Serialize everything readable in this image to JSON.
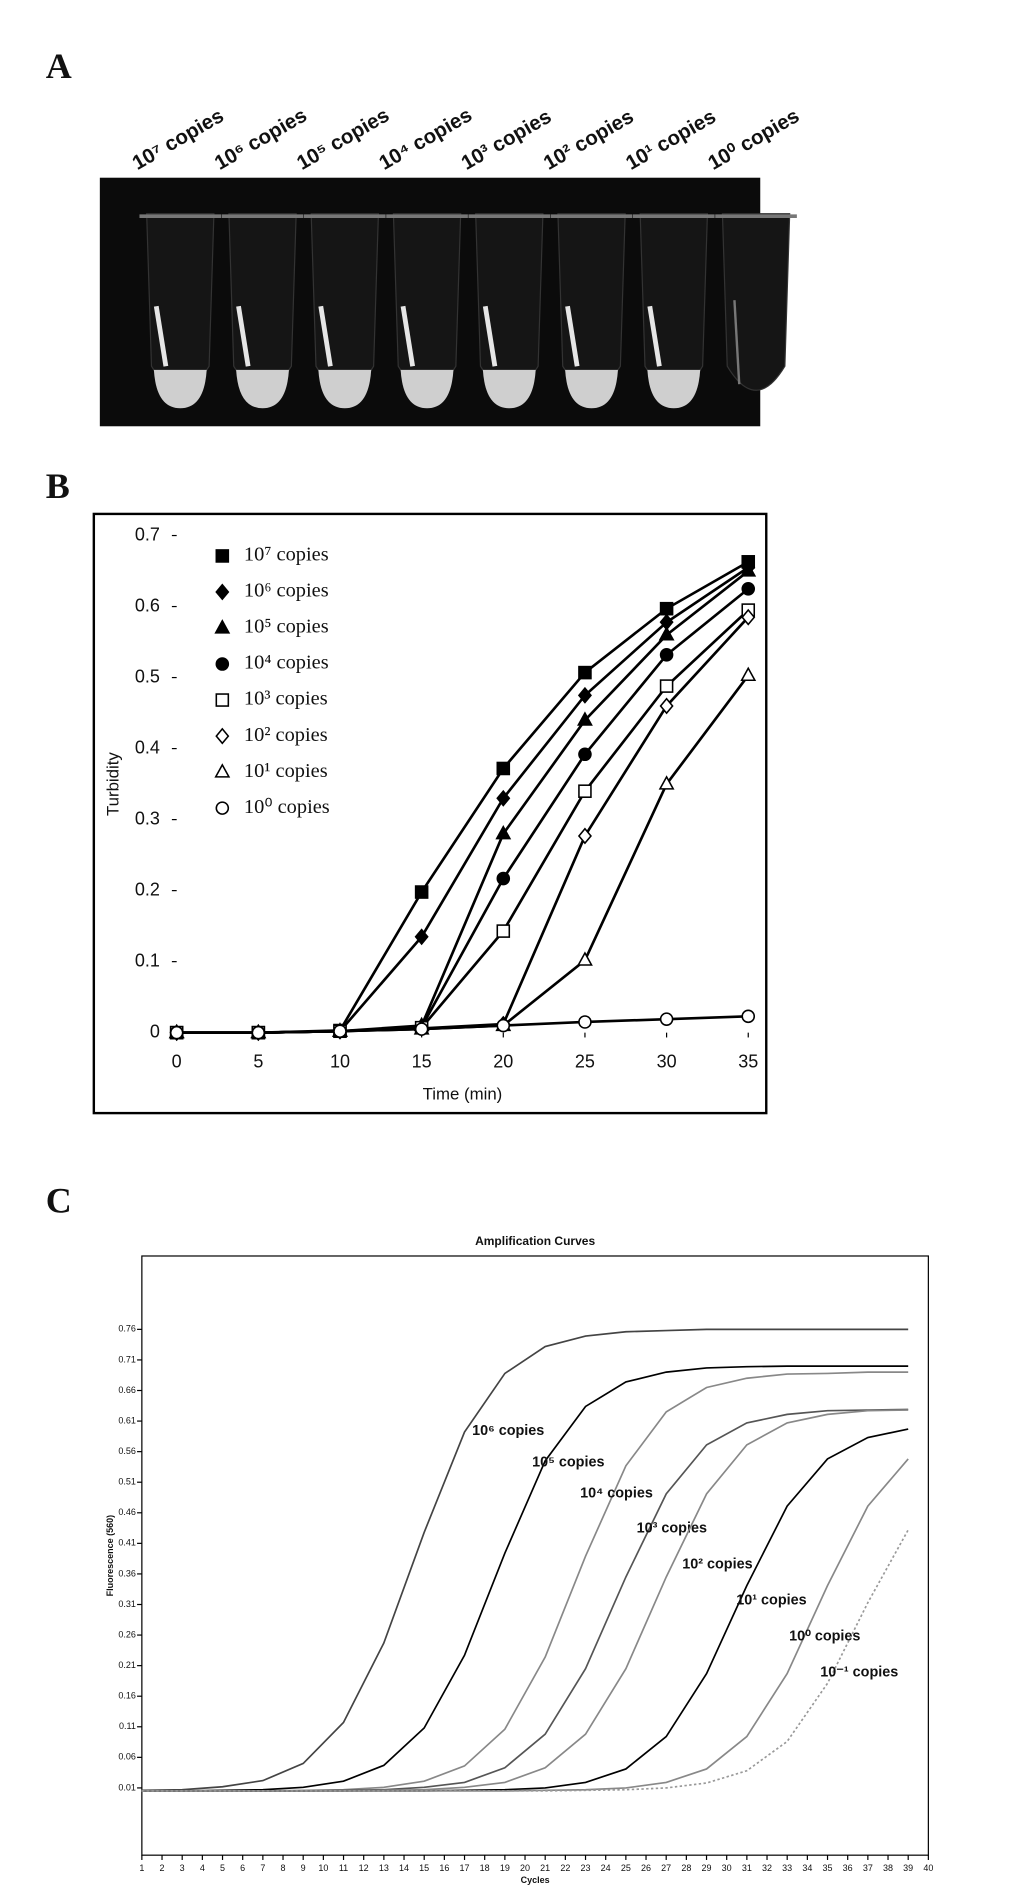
{
  "panel_labels": [
    "A",
    "B",
    "C"
  ],
  "gel": {
    "labels": [
      "10⁷ copies",
      "10⁶ copies",
      "10⁵ copies",
      "10⁴ copies",
      "10³ copies",
      "10² copies",
      "10¹ copies",
      "10⁰ copies"
    ]
  },
  "chart_data": [
    {
      "type": "line",
      "y_label": "Turbidity",
      "x_label": "Time (min)",
      "x": [
        0,
        5,
        10,
        15,
        20,
        25,
        30,
        35
      ],
      "xlim": [
        0,
        35
      ],
      "xticks": [
        0,
        5,
        10,
        15,
        20,
        25,
        30,
        35
      ],
      "ylim": [
        0,
        0.7
      ],
      "yticks": [
        0,
        0.1,
        0.2,
        0.3,
        0.4,
        0.5,
        0.6,
        0.7
      ],
      "legend": "upper left",
      "series": [
        {
          "name": "10⁷ copies",
          "color": "#000000",
          "marker": "square",
          "filled": true,
          "values": [
            0,
            0,
            0.003,
            0.198,
            0.372,
            0.507,
            0.597,
            0.663
          ]
        },
        {
          "name": "10⁶ copies",
          "color": "#000000",
          "marker": "diamond",
          "filled": true,
          "values": [
            0,
            0,
            0.002,
            0.135,
            0.33,
            0.475,
            0.578,
            0.655
          ]
        },
        {
          "name": "10⁵ copies",
          "color": "#000000",
          "marker": "triangle",
          "filled": true,
          "values": [
            0,
            0,
            0.002,
            0.01,
            0.28,
            0.44,
            0.56,
            0.65
          ]
        },
        {
          "name": "10⁴ copies",
          "color": "#000000",
          "marker": "circle",
          "filled": true,
          "values": [
            0,
            0,
            0.002,
            0.008,
            0.217,
            0.392,
            0.532,
            0.625
          ]
        },
        {
          "name": "10³ copies",
          "color": "#000000",
          "marker": "square",
          "filled": false,
          "values": [
            0,
            0,
            0.002,
            0.007,
            0.143,
            0.34,
            0.488,
            0.595
          ]
        },
        {
          "name": "10² copies",
          "color": "#000000",
          "marker": "diamond",
          "filled": false,
          "values": [
            0,
            0,
            0.002,
            0.006,
            0.012,
            0.277,
            0.46,
            0.585
          ]
        },
        {
          "name": "10¹ copies",
          "color": "#000000",
          "marker": "triangle",
          "filled": false,
          "values": [
            0,
            0,
            0.002,
            0.005,
            0.01,
            0.102,
            0.35,
            0.503
          ]
        },
        {
          "name": "10⁰ copies",
          "color": "#000000",
          "marker": "circle",
          "filled": false,
          "values": [
            0,
            0,
            0.002,
            0.005,
            0.01,
            0.015,
            0.019,
            0.023
          ]
        }
      ]
    },
    {
      "type": "line",
      "title": "Amplification Curves",
      "y_label": "Fluorescence (560)",
      "x_label": "Cycles",
      "x": [
        1,
        3,
        5,
        7,
        9,
        11,
        13,
        15,
        17,
        19,
        21,
        23,
        25,
        27,
        29,
        31,
        33,
        35,
        37,
        39
      ],
      "xlim": [
        1,
        40
      ],
      "xticks": [
        1,
        2,
        3,
        4,
        5,
        6,
        7,
        8,
        9,
        10,
        11,
        12,
        13,
        14,
        15,
        16,
        17,
        18,
        19,
        20,
        21,
        22,
        23,
        24,
        25,
        26,
        27,
        28,
        29,
        30,
        31,
        32,
        33,
        34,
        35,
        36,
        37,
        38,
        39,
        40
      ],
      "ylim": [
        -0.1,
        0.88
      ],
      "yticks": [
        0.01,
        0.06,
        0.11,
        0.16,
        0.21,
        0.26,
        0.31,
        0.36,
        0.41,
        0.46,
        0.51,
        0.56,
        0.61,
        0.66,
        0.71,
        0.76
      ],
      "series": [
        {
          "name": "10⁶ copies",
          "color": "#444444",
          "values": [
            0.006,
            0.007,
            0.012,
            0.022,
            0.05,
            0.117,
            0.247,
            0.428,
            0.592,
            0.688,
            0.732,
            0.749,
            0.756,
            0.758,
            0.76,
            0.76,
            0.76,
            0.76,
            0.76,
            0.76
          ]
        },
        {
          "name": "10⁵ copies",
          "color": "#000000",
          "values": [
            0.005,
            0.005,
            0.006,
            0.007,
            0.011,
            0.021,
            0.047,
            0.108,
            0.227,
            0.394,
            0.545,
            0.634,
            0.674,
            0.69,
            0.697,
            0.699,
            0.7,
            0.7,
            0.7,
            0.7
          ]
        },
        {
          "name": "10⁴ copies",
          "color": "#888888",
          "values": [
            0.005,
            0.005,
            0.005,
            0.005,
            0.006,
            0.007,
            0.011,
            0.021,
            0.046,
            0.106,
            0.224,
            0.389,
            0.537,
            0.625,
            0.665,
            0.68,
            0.687,
            0.688,
            0.69,
            0.69
          ]
        },
        {
          "name": "10³ copies",
          "color": "#555555",
          "values": [
            0.005,
            0.005,
            0.005,
            0.005,
            0.005,
            0.006,
            0.007,
            0.011,
            0.019,
            0.043,
            0.098,
            0.205,
            0.355,
            0.491,
            0.571,
            0.607,
            0.621,
            0.627,
            0.628,
            0.629
          ]
        },
        {
          "name": "10² copies",
          "color": "#888888",
          "values": [
            0.005,
            0.005,
            0.005,
            0.005,
            0.005,
            0.005,
            0.006,
            0.007,
            0.011,
            0.019,
            0.043,
            0.098,
            0.205,
            0.355,
            0.491,
            0.571,
            0.607,
            0.621,
            0.627,
            0.628
          ]
        },
        {
          "name": "10¹ copies",
          "color": "#000000",
          "values": [
            0.005,
            0.005,
            0.005,
            0.005,
            0.005,
            0.005,
            0.005,
            0.005,
            0.006,
            0.007,
            0.01,
            0.019,
            0.041,
            0.094,
            0.197,
            0.341,
            0.471,
            0.548,
            0.583,
            0.597
          ]
        },
        {
          "name": "10⁰ copies",
          "color": "#888888",
          "values": [
            0.005,
            0.005,
            0.005,
            0.005,
            0.005,
            0.005,
            0.005,
            0.005,
            0.005,
            0.005,
            0.006,
            0.007,
            0.01,
            0.019,
            0.041,
            0.094,
            0.197,
            0.341,
            0.471,
            0.548
          ]
        },
        {
          "name": "10⁻¹ copies",
          "color": "#999999",
          "dash": true,
          "values": [
            0.005,
            0.005,
            0.005,
            0.005,
            0.005,
            0.005,
            0.005,
            0.005,
            0.005,
            0.005,
            0.005,
            0.006,
            0.007,
            0.01,
            0.018,
            0.038,
            0.086,
            0.181,
            0.313,
            0.432
          ]
        }
      ]
    }
  ]
}
